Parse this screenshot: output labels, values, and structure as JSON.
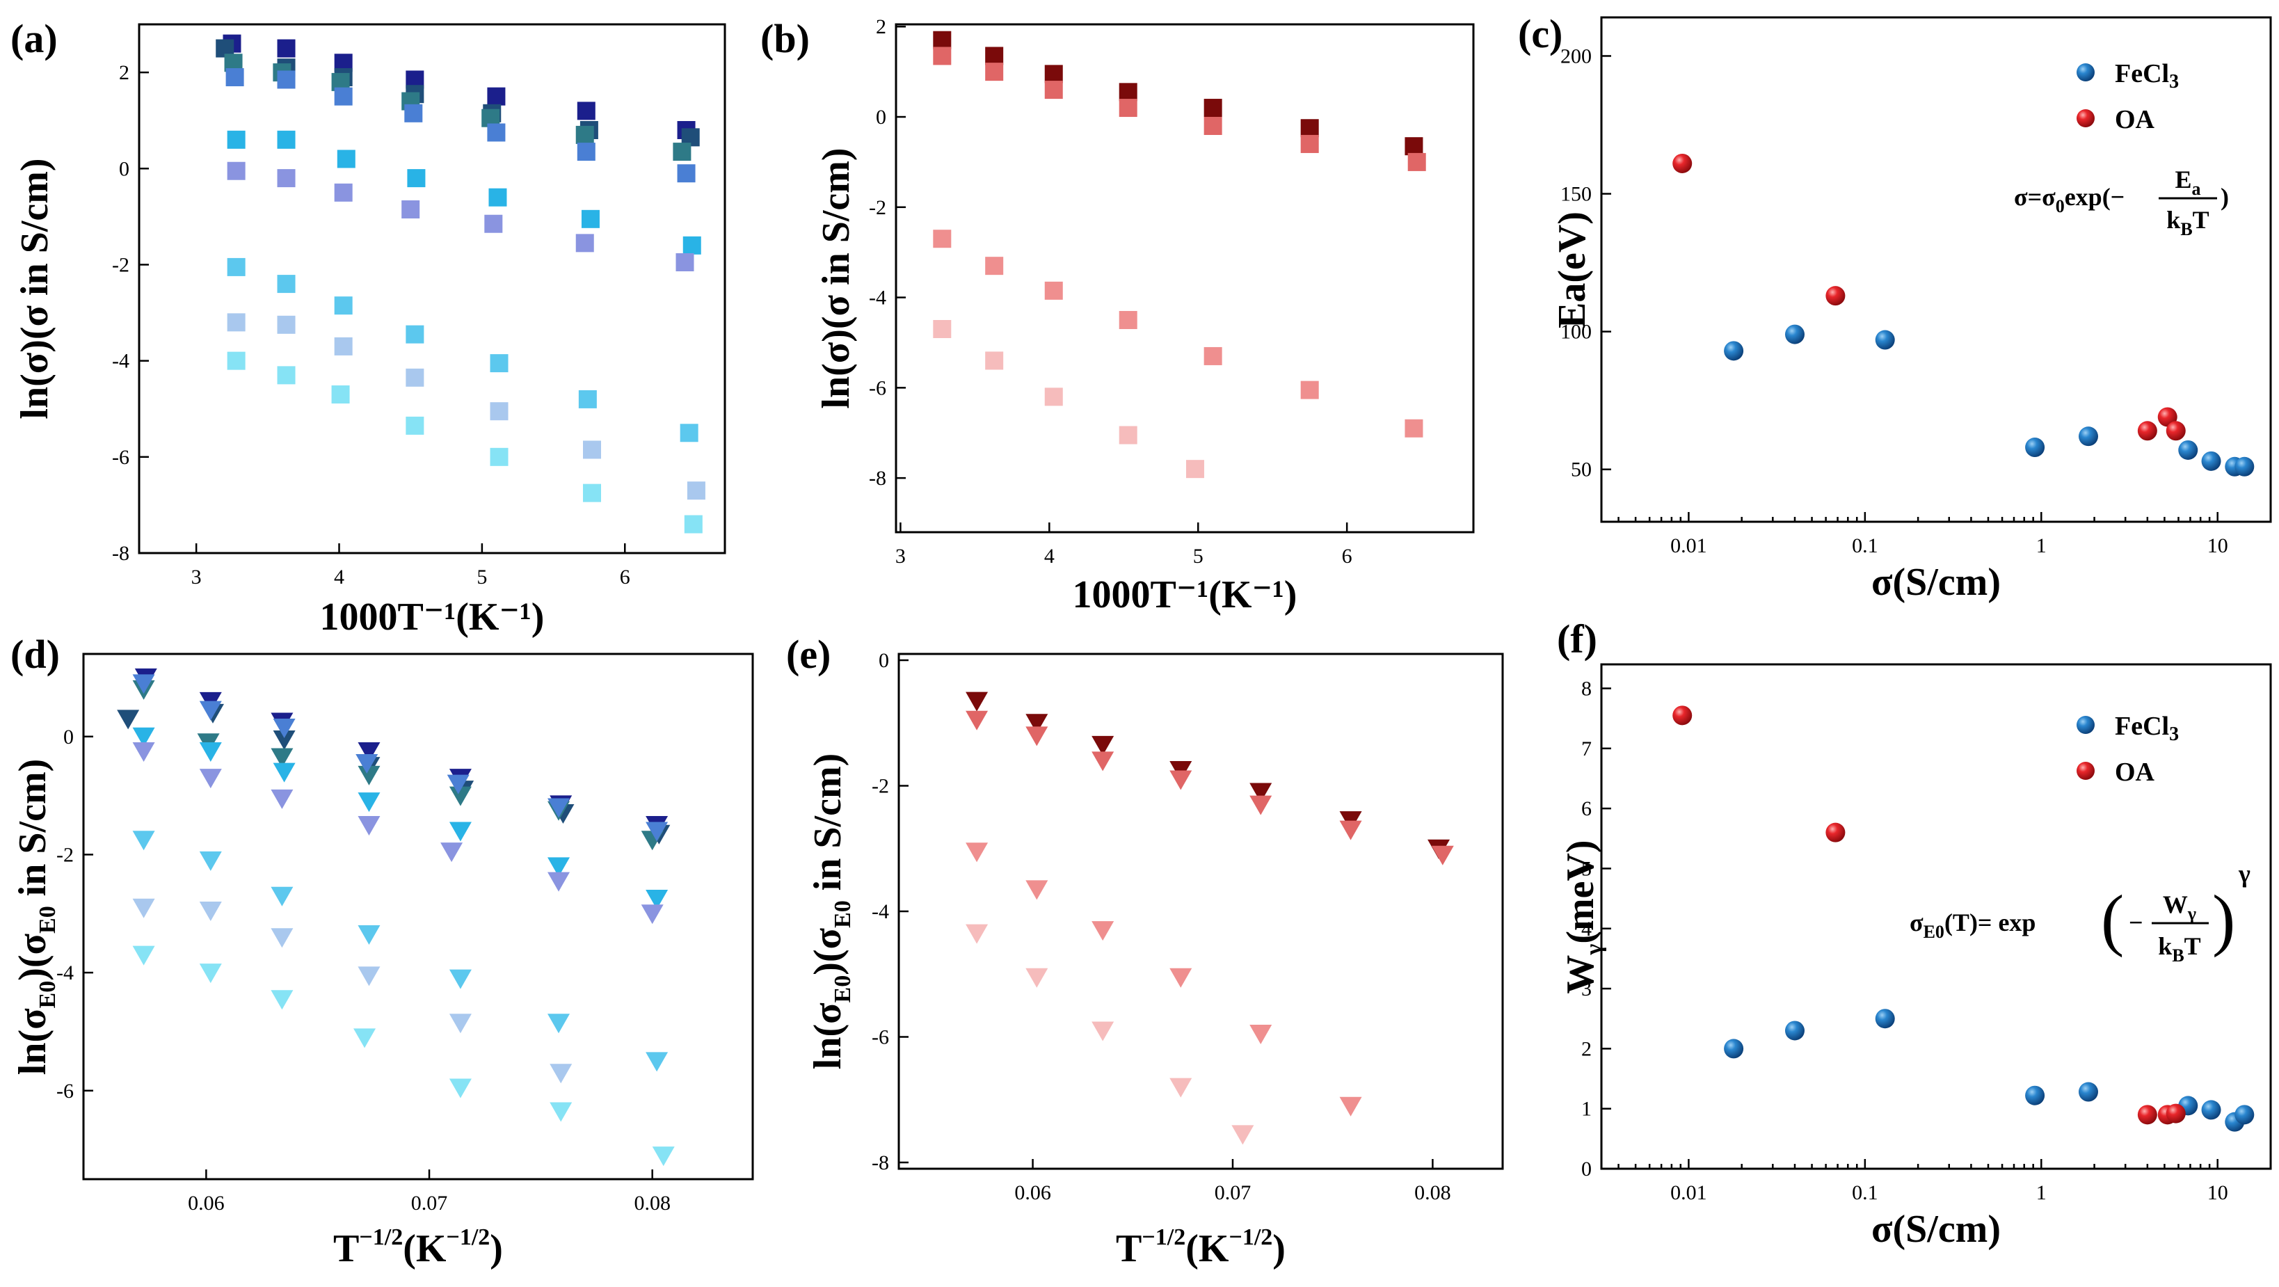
{
  "figure": {
    "panel_labels": [
      "(a)",
      "(b)",
      "(c)",
      "(d)",
      "(e)",
      "(f)"
    ],
    "formula_c": {
      "parts": [
        "σ=σ",
        "0",
        "exp(−",
        "E",
        "a",
        "k",
        "B",
        "T",
        ")"
      ]
    },
    "formula_f": {
      "parts": [
        "σ",
        "E0",
        "(T)= exp",
        "−",
        "W",
        "γ",
        "k",
        "B",
        "T",
        "γ"
      ]
    }
  },
  "chart_data": [
    {
      "id": "a",
      "type": "scatter",
      "marker": "square",
      "title": "",
      "xlabel": "1000T⁻¹(K⁻¹)",
      "ylabel": "ln(σ)(σ in S/cm)",
      "xlim": [
        2.6,
        6.7
      ],
      "ylim": [
        -8,
        3
      ],
      "xticks": [
        3,
        4,
        5,
        6
      ],
      "yticks": [
        -8,
        -6,
        -4,
        -2,
        0,
        2
      ],
      "series": [
        {
          "name": "s1",
          "color": "#1b1f8c",
          "x": [
            3.25,
            3.63,
            4.03,
            4.53,
            5.1,
            5.73,
            6.43
          ],
          "y": [
            2.6,
            2.5,
            2.2,
            1.85,
            1.5,
            1.2,
            0.8
          ]
        },
        {
          "name": "s2",
          "color": "#1f4e79",
          "x": [
            3.2,
            3.63,
            4.03,
            4.53,
            5.07,
            5.75,
            6.46
          ],
          "y": [
            2.5,
            2.1,
            1.9,
            1.55,
            1.15,
            0.8,
            0.65
          ]
        },
        {
          "name": "s3",
          "color": "#2e7a87",
          "x": [
            3.26,
            3.6,
            4.01,
            4.5,
            5.06,
            5.72,
            6.4
          ],
          "y": [
            2.2,
            2.0,
            1.8,
            1.4,
            1.05,
            0.7,
            0.35
          ]
        },
        {
          "name": "s4",
          "color": "#4a7fd4",
          "x": [
            3.27,
            3.63,
            4.03,
            4.52,
            5.1,
            5.73,
            6.43
          ],
          "y": [
            1.9,
            1.85,
            1.5,
            1.15,
            0.75,
            0.35,
            -0.1
          ]
        },
        {
          "name": "s5",
          "color": "#29b3e6",
          "x": [
            3.28,
            3.63,
            4.05,
            4.54,
            5.11,
            5.76,
            6.47
          ],
          "y": [
            0.6,
            0.6,
            0.2,
            -0.2,
            -0.6,
            -1.05,
            -1.6
          ]
        },
        {
          "name": "s6",
          "color": "#8a94e0",
          "x": [
            3.28,
            3.63,
            4.03,
            4.5,
            5.08,
            5.72,
            6.42
          ],
          "y": [
            -0.05,
            -0.2,
            -0.5,
            -0.85,
            -1.15,
            -1.55,
            -1.95
          ]
        },
        {
          "name": "s7",
          "color": "#5cc8ee",
          "x": [
            3.28,
            3.63,
            4.03,
            4.53,
            5.12,
            5.74,
            6.45
          ],
          "y": [
            -2.05,
            -2.4,
            -2.85,
            -3.45,
            -4.05,
            -4.8,
            -5.5
          ]
        },
        {
          "name": "s8",
          "color": "#a9c8ee",
          "x": [
            3.28,
            3.63,
            4.03,
            4.53,
            5.12,
            5.77,
            6.5
          ],
          "y": [
            -3.2,
            -3.25,
            -3.7,
            -4.35,
            -5.05,
            -5.85,
            -6.7
          ]
        },
        {
          "name": "s9",
          "color": "#86e3f5",
          "x": [
            3.28,
            3.63,
            4.01,
            4.53,
            5.12,
            5.77,
            6.48
          ],
          "y": [
            -4.0,
            -4.3,
            -4.7,
            -5.35,
            -6.0,
            -6.75,
            -7.4
          ]
        }
      ]
    },
    {
      "id": "b",
      "type": "scatter",
      "marker": "square",
      "title": "",
      "xlabel": "1000T⁻¹(K⁻¹)",
      "ylabel": "ln(σ)(σ in S/cm)",
      "xlim": [
        2.97,
        6.85
      ],
      "ylim": [
        -9.2,
        2.05
      ],
      "xticks": [
        3,
        4,
        5,
        6
      ],
      "yticks": [
        -8,
        -6,
        -4,
        -2,
        0,
        2
      ],
      "series": [
        {
          "name": "s1",
          "color": "#7a0a0a",
          "x": [
            3.28,
            3.63,
            4.03,
            4.53,
            5.1,
            5.75,
            6.45
          ],
          "y": [
            1.7,
            1.35,
            0.95,
            0.55,
            0.2,
            -0.25,
            -0.65
          ]
        },
        {
          "name": "s2",
          "color": "#e06666",
          "x": [
            3.28,
            3.63,
            4.03,
            4.53,
            5.1,
            5.75,
            6.47
          ],
          "y": [
            1.35,
            1.0,
            0.6,
            0.2,
            -0.2,
            -0.6,
            -1.0
          ]
        },
        {
          "name": "s3",
          "color": "#ef8f8f",
          "x": [
            3.28,
            3.63,
            4.03,
            4.53,
            5.1,
            5.75,
            6.45
          ],
          "y": [
            -2.7,
            -3.3,
            -3.85,
            -4.5,
            -5.3,
            -6.05,
            -6.9
          ]
        },
        {
          "name": "s4",
          "color": "#f6bcbc",
          "x": [
            3.28,
            3.63,
            4.03,
            4.53,
            4.98
          ],
          "y": [
            -4.7,
            -5.4,
            -6.2,
            -7.05,
            -7.8
          ]
        }
      ]
    },
    {
      "id": "c",
      "type": "scatter",
      "marker": "sphere",
      "xscale": "log",
      "title": "",
      "xlabel": "σ(S/cm)",
      "ylabel": "Ea(eV)",
      "xlim": [
        0.0032,
        20
      ],
      "ylim": [
        31,
        214
      ],
      "xticks": [
        0.01,
        0.1,
        1,
        10
      ],
      "xticklabels": [
        "0.01",
        "0.1",
        "1",
        "10"
      ],
      "yticks": [
        50,
        100,
        150,
        200
      ],
      "legend": {
        "position": "top-right",
        "entries": [
          {
            "label": "FeCl",
            "sub": "3",
            "color": "#1f6fb0"
          },
          {
            "label": "OA",
            "color": "#e0161b"
          }
        ]
      },
      "series": [
        {
          "name": "FeCl3",
          "color": "#1f6fb0",
          "x": [
            0.018,
            0.04,
            0.13,
            0.92,
            1.85,
            6.8,
            9.2,
            12.5,
            14.2
          ],
          "y": [
            93,
            99,
            97,
            58,
            62,
            57,
            53,
            51,
            51
          ]
        },
        {
          "name": "OA",
          "color": "#e0161b",
          "x": [
            0.0092,
            0.068,
            4.0,
            5.2,
            5.8
          ],
          "y": [
            161,
            113,
            64,
            69,
            64
          ]
        }
      ]
    },
    {
      "id": "d",
      "type": "scatter",
      "marker": "triangle-down",
      "title": "",
      "xlabel": "T⁻¹ᐟ²(K⁻¹ᐟ²)",
      "ylabel": "ln(σE0)(σE0 in S/cm)",
      "ylabel_parts": [
        "ln(σ",
        "E0",
        ")(σ",
        "E0",
        " in S/cm)"
      ],
      "xlabel_parts": [
        "T",
        "−1/2",
        "(K",
        "−1/2",
        ")"
      ],
      "xlim": [
        0.0545,
        0.0845
      ],
      "ylim": [
        -7.5,
        1.4
      ],
      "xticks": [
        0.06,
        0.07,
        0.08
      ],
      "xticklabels": [
        "0.06",
        "0.07",
        "0.08"
      ],
      "yticks": [
        -6,
        -4,
        -2,
        0
      ],
      "series": [
        {
          "name": "s1",
          "color": "#1b1f8c",
          "x": [
            0.0573,
            0.0602,
            0.0634,
            0.0673,
            0.0714,
            0.0759,
            0.0802
          ],
          "y": [
            1.0,
            0.6,
            0.25,
            -0.25,
            -0.7,
            -1.15,
            -1.5
          ]
        },
        {
          "name": "s2",
          "color": "#1f4e79",
          "x": [
            0.0565,
            0.0603,
            0.0635,
            0.0673,
            0.0715,
            0.076,
            0.0803
          ],
          "y": [
            0.3,
            0.4,
            -0.05,
            -0.5,
            -0.9,
            -1.3,
            -1.65
          ]
        },
        {
          "name": "s3",
          "color": "#2e7a87",
          "x": [
            0.0572,
            0.0601,
            0.0634,
            0.0673,
            0.0714,
            0.0758,
            0.08
          ],
          "y": [
            0.8,
            -0.1,
            -0.35,
            -0.65,
            -1.0,
            -1.25,
            -1.75
          ]
        },
        {
          "name": "s4",
          "color": "#4a7fd4",
          "x": [
            0.0572,
            0.0602,
            0.0635,
            0.0672,
            0.0713,
            0.0758,
            0.0802
          ],
          "y": [
            0.9,
            0.45,
            0.15,
            -0.45,
            -0.8,
            -1.2,
            -1.6
          ]
        },
        {
          "name": "s5",
          "color": "#29b3e6",
          "x": [
            0.0572,
            0.0602,
            0.0635,
            0.0673,
            0.0714,
            0.0758,
            0.0802
          ],
          "y": [
            0.0,
            -0.25,
            -0.6,
            -1.1,
            -1.6,
            -2.2,
            -2.75
          ]
        },
        {
          "name": "s6",
          "color": "#8a94e0",
          "x": [
            0.0572,
            0.0602,
            0.0634,
            0.0673,
            0.071,
            0.0758,
            0.08
          ],
          "y": [
            -0.25,
            -0.7,
            -1.05,
            -1.5,
            -1.95,
            -2.45,
            -3.0
          ]
        },
        {
          "name": "s7",
          "color": "#5cc8ee",
          "x": [
            0.0572,
            0.0602,
            0.0634,
            0.0673,
            0.0714,
            0.0758,
            0.0802
          ],
          "y": [
            -1.75,
            -2.1,
            -2.7,
            -3.35,
            -4.1,
            -4.85,
            -5.5
          ]
        },
        {
          "name": "s8",
          "color": "#a9c8ee",
          "x": [
            0.0572,
            0.0602,
            0.0634,
            0.0673,
            0.0714,
            0.0759
          ],
          "y": [
            -2.9,
            -2.95,
            -3.4,
            -4.05,
            -4.85,
            -5.7
          ]
        },
        {
          "name": "s9",
          "color": "#86e3f5",
          "x": [
            0.0572,
            0.0602,
            0.0634,
            0.0671,
            0.0714,
            0.0759,
            0.0805
          ],
          "y": [
            -3.7,
            -4.0,
            -4.45,
            -5.1,
            -5.95,
            -6.35,
            -7.1
          ]
        }
      ]
    },
    {
      "id": "e",
      "type": "scatter",
      "marker": "triangle-down",
      "title": "",
      "xlabel": "T⁻¹ᐟ²(K⁻¹ᐟ²)",
      "ylabel": "ln(σE0)(σE0 in S/cm)",
      "ylabel_parts": [
        "ln(σ",
        "E0",
        ")(σ",
        "E0",
        " in S/cm)"
      ],
      "xlabel_parts": [
        "T",
        "−1/2",
        "(K",
        "−1/2",
        ")"
      ],
      "xlim": [
        0.0533,
        0.0835
      ],
      "ylim": [
        -8.1,
        0.1
      ],
      "xticks": [
        0.06,
        0.07,
        0.08
      ],
      "xticklabels": [
        "0.06",
        "0.07",
        "0.08"
      ],
      "yticks": [
        -8,
        -6,
        -4,
        -2,
        0
      ],
      "series": [
        {
          "name": "s1",
          "color": "#7a0a0a",
          "x": [
            0.0572,
            0.0602,
            0.0635,
            0.0674,
            0.0714,
            0.0759,
            0.0803
          ],
          "y": [
            -0.65,
            -1.0,
            -1.35,
            -1.75,
            -2.1,
            -2.55,
            -3.0
          ]
        },
        {
          "name": "s2",
          "color": "#e06666",
          "x": [
            0.0572,
            0.0602,
            0.0635,
            0.0674,
            0.0714,
            0.0759,
            0.0805
          ],
          "y": [
            -0.95,
            -1.2,
            -1.6,
            -1.9,
            -2.3,
            -2.7,
            -3.1
          ]
        },
        {
          "name": "s3",
          "color": "#ef8f8f",
          "x": [
            0.0572,
            0.0602,
            0.0635,
            0.0674,
            0.0714,
            0.0759
          ],
          "y": [
            -3.05,
            -3.65,
            -4.3,
            -5.05,
            -5.95,
            -7.1
          ]
        },
        {
          "name": "s4",
          "color": "#f6bcbc",
          "x": [
            0.0572,
            0.0602,
            0.0635,
            0.0674,
            0.0705
          ],
          "y": [
            -4.35,
            -5.05,
            -5.9,
            -6.8,
            -7.55
          ]
        }
      ]
    },
    {
      "id": "f",
      "type": "scatter",
      "marker": "sphere",
      "xscale": "log",
      "title": "",
      "xlabel": "σ(S/cm)",
      "ylabel": "Wγ(meV)",
      "ylabel_parts": [
        "W",
        "γ",
        "(meV)"
      ],
      "xlim": [
        0.0032,
        20
      ],
      "ylim": [
        0,
        8.4
      ],
      "xticks": [
        0.01,
        0.1,
        1,
        10
      ],
      "xticklabels": [
        "0.01",
        "0.1",
        "1",
        "10"
      ],
      "yticks": [
        0,
        1,
        2,
        3,
        4,
        5,
        6,
        7,
        8
      ],
      "legend": {
        "position": "top-right",
        "entries": [
          {
            "label": "FeCl",
            "sub": "3",
            "color": "#1f6fb0"
          },
          {
            "label": "OA",
            "color": "#e0161b"
          }
        ]
      },
      "series": [
        {
          "name": "FeCl3",
          "color": "#1f6fb0",
          "x": [
            0.018,
            0.04,
            0.13,
            0.92,
            1.85,
            6.8,
            9.2,
            12.5,
            14.2
          ],
          "y": [
            2.0,
            2.3,
            2.5,
            1.22,
            1.28,
            1.05,
            0.98,
            0.78,
            0.9
          ]
        },
        {
          "name": "OA",
          "color": "#e0161b",
          "x": [
            0.0092,
            0.068,
            4.0,
            5.2,
            5.8
          ],
          "y": [
            7.55,
            5.6,
            0.9,
            0.9,
            0.92
          ]
        }
      ]
    }
  ]
}
